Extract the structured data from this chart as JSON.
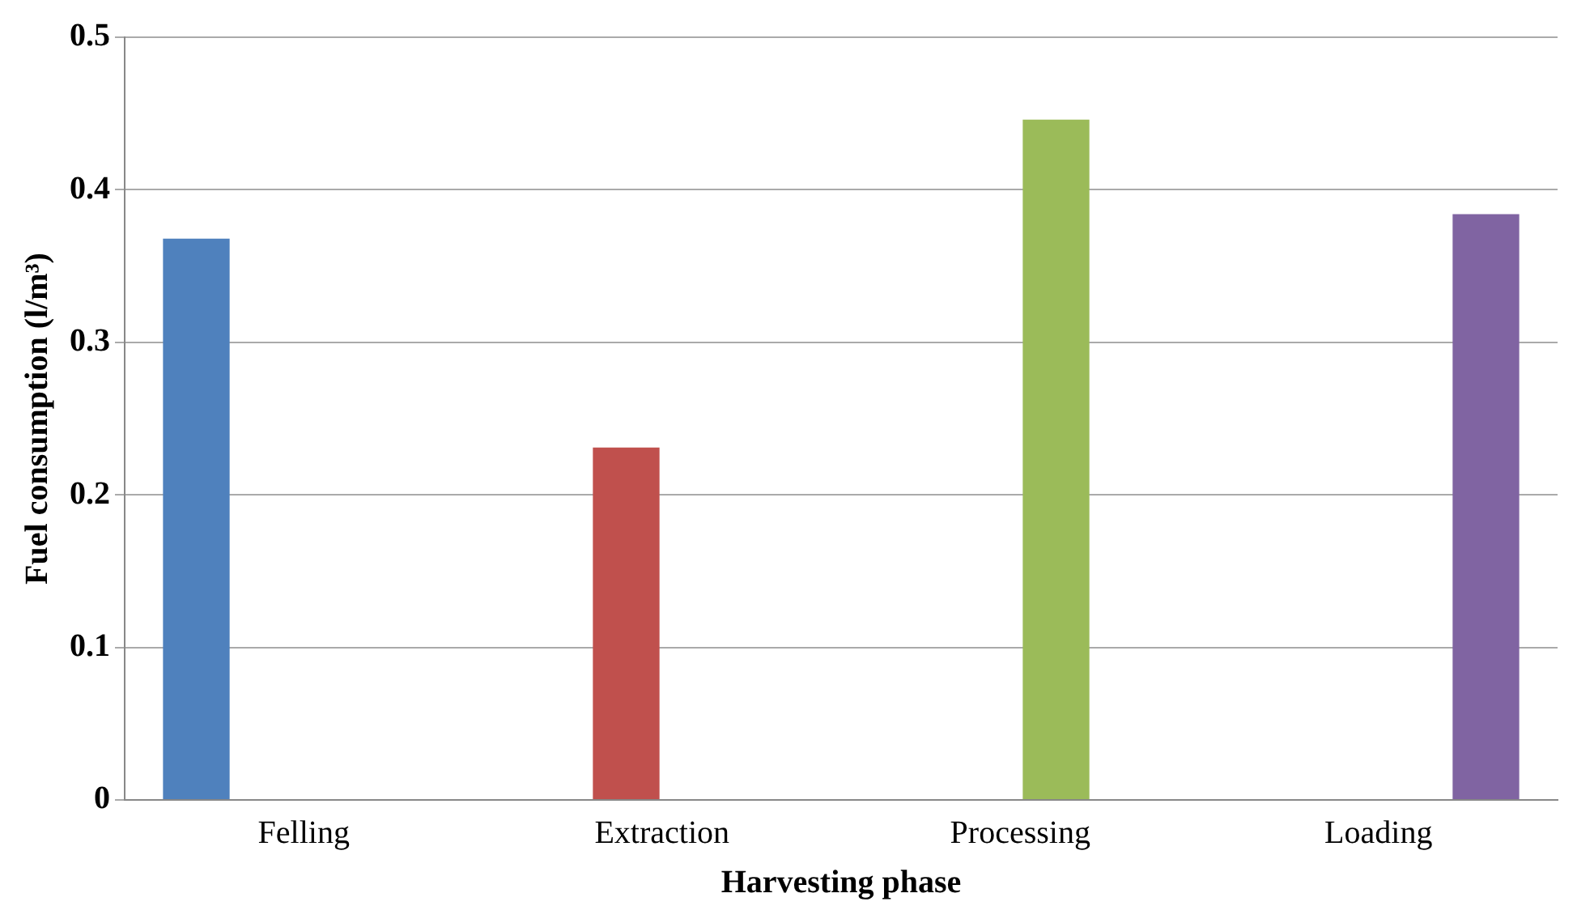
{
  "chart_data": {
    "type": "bar",
    "xlabel": "Harvesting phase",
    "ylabel": "Fuel consumption (l/m³)",
    "categories": [
      "Felling",
      "Extraction",
      "Processing",
      "Loading"
    ],
    "series": [
      {
        "color": "#4f81bd",
        "values": [
          0.368,
          null,
          null,
          null
        ]
      },
      {
        "color": "#c0504d",
        "values": [
          null,
          0.231,
          null,
          null
        ]
      },
      {
        "color": "#9bbb59",
        "values": [
          null,
          null,
          0.446,
          null
        ]
      },
      {
        "color": "#8064a2",
        "values": [
          null,
          null,
          null,
          0.384
        ]
      }
    ],
    "ylim": [
      0,
      0.5
    ],
    "yticks": [
      0,
      0.1,
      0.2,
      0.3,
      0.4,
      0.5
    ],
    "grid": "y",
    "legend": false
  }
}
